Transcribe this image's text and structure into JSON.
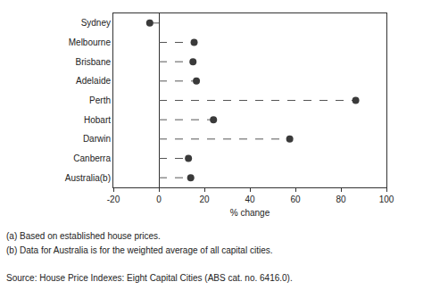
{
  "chart_data": {
    "type": "dot",
    "orientation": "horizontal",
    "line_style": "dashed",
    "marker": "circle",
    "color": "#3a3a3a",
    "categories": [
      "Sydney",
      "Melbourne",
      "Brisbane",
      "Adelaide",
      "Perth",
      "Hobart",
      "Darwin",
      "Canberra",
      "Australia(b)"
    ],
    "values": [
      -4,
      15.5,
      15,
      16.5,
      86.5,
      24,
      57.5,
      13,
      14
    ],
    "x_label": "% change",
    "xlim": [
      -20,
      100
    ],
    "xticks": [
      -20,
      0,
      20,
      40,
      60,
      80,
      100
    ],
    "grid": false,
    "notes": [
      "(a) Based on established house prices.",
      "(b) Data for Australia is for the weighted average of all capital cities."
    ],
    "source": "Source: House Price Indexes: Eight Capital Cities (ABS cat. no. 6416.0)."
  }
}
